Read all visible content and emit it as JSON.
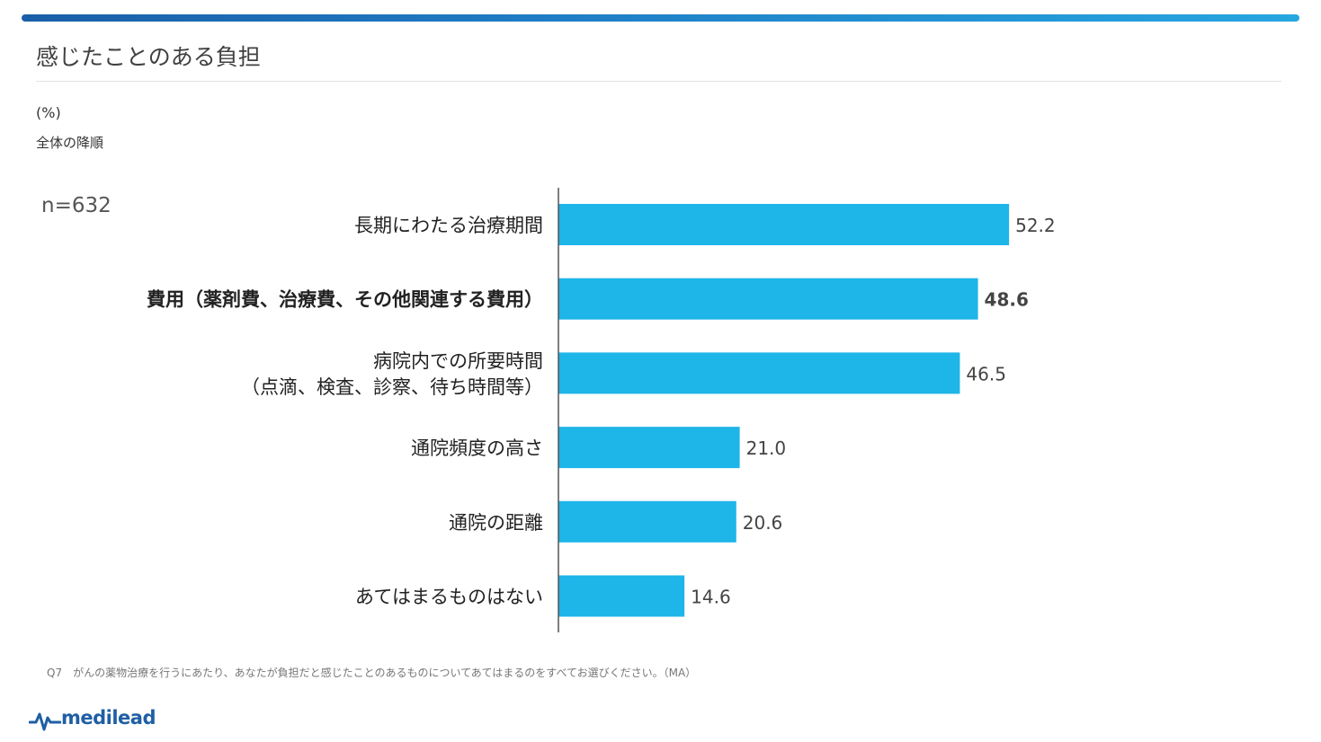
{
  "page": {
    "title": "感じたことのある負担",
    "unit": "(%)",
    "sort_note": "全体の降順",
    "sample_size": "n=632",
    "footnote": "Q7　がんの薬物治療を行うにあたり、あなたが負担だと感じたことのあるものについてあてはまるのをすべてお選びください。（MA）",
    "brand": "medilead"
  },
  "colors": {
    "bar": "#1eb5e8",
    "header_bar_start": "#1a5fa8",
    "header_bar_end": "#27a6e0",
    "brand": "#1f5fa5"
  },
  "icons": {
    "brand_logo": "pulse-line-icon"
  },
  "chart_data": {
    "type": "bar",
    "orientation": "horizontal",
    "categories": [
      [
        "長期にわたる治療期間"
      ],
      [
        "費用（薬剤費、治療費、その他関連する費用）"
      ],
      [
        "病院内での所要時間",
        "（点滴、検査、診察、待ち時間等）"
      ],
      [
        "通院頻度の高さ"
      ],
      [
        "通院の距離"
      ],
      [
        "あてはまるものはない"
      ]
    ],
    "values": [
      52.2,
      48.6,
      46.5,
      21.0,
      20.6,
      14.6
    ],
    "value_labels": [
      "52.2",
      "48.6",
      "46.5",
      "21.0",
      "20.6",
      "14.6"
    ],
    "highlighted_index": 1,
    "xlim": [
      0,
      100
    ],
    "grid": false,
    "legend": "none"
  }
}
